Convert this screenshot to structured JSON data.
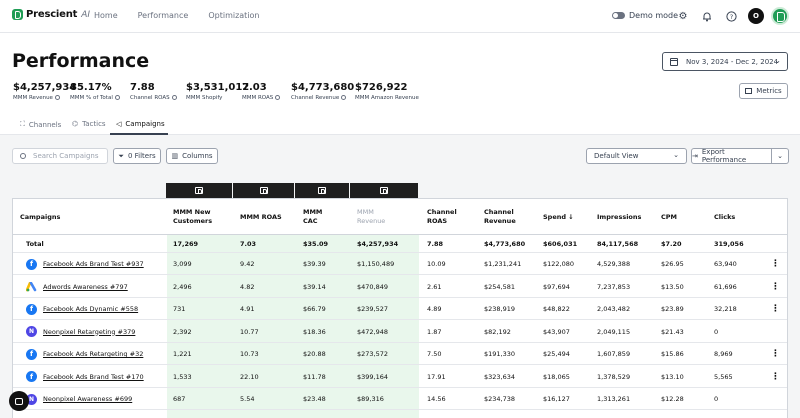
{
  "app": {
    "brand": "Prescient",
    "brand_suffix": "AI",
    "nav": [
      "Home",
      "Performance",
      "Optimization"
    ],
    "demo_mode_label": "Demo mode",
    "avatar_initial": "O"
  },
  "header": {
    "title": "Performance",
    "date_range": "Nov 3, 2024 - Dec 2, 2024",
    "metrics_button": "Metrics"
  },
  "kpis": [
    {
      "value": "$4,257,934",
      "label": "MMM Revenue"
    },
    {
      "value": "85.17%",
      "label": "MMM % of Total"
    },
    {
      "value": "7.88",
      "label": "Channel ROAS"
    },
    {
      "value": "$3,531,012",
      "label": "MMM Shopify"
    },
    {
      "value": "7.03",
      "label": "MMM ROAS"
    },
    {
      "value": "$4,773,680",
      "label": "Channel Revenue"
    },
    {
      "value": "$726,922",
      "label": "MMM Amazon Revenue"
    }
  ],
  "tabs": [
    {
      "label": "Channels",
      "icon": "channels-icon"
    },
    {
      "label": "Tactics",
      "icon": "tactics-icon"
    },
    {
      "label": "Campaigns",
      "icon": "campaigns-icon"
    }
  ],
  "toolbar": {
    "search_placeholder": "Search Campaigns",
    "filters_label": "0 Filters",
    "columns_label": "Columns",
    "view_label": "Default View",
    "export_label": "Export Performance"
  },
  "table": {
    "headers": {
      "campaigns": "Campaigns",
      "mmm_new_customers": "MMM New Customers",
      "mmm_roas": "MMM ROAS",
      "mmm_cac": "MMM CAC",
      "mmm_revenue": "MMM Revenue",
      "channel_roas": "Channel ROAS",
      "channel_revenue": "Channel Revenue",
      "spend": "Spend ↓",
      "impressions": "Impressions",
      "cpm": "CPM",
      "clicks": "Clicks"
    },
    "total": {
      "name": "Total",
      "new_customers": "17,269",
      "mmm_roas": "7.03",
      "mmm_cac": "$35.09",
      "mmm_revenue": "$4,257,934",
      "channel_roas": "7.88",
      "channel_revenue": "$4,773,680",
      "spend": "$606,031",
      "impressions": "84,117,568",
      "cpm": "$7.20",
      "clicks": "319,056"
    },
    "rows": [
      {
        "channel": "facebook",
        "name": "Facebook Ads Brand Test #937",
        "new_customers": "3,099",
        "mmm_roas": "9.42",
        "mmm_cac": "$39.39",
        "mmm_revenue": "$1,150,489",
        "channel_roas": "10.09",
        "channel_revenue": "$1,231,241",
        "spend": "$122,080",
        "impressions": "4,529,388",
        "cpm": "$26.95",
        "clicks": "63,940",
        "menu": true
      },
      {
        "channel": "adwords",
        "name": "Adwords Awareness #797",
        "new_customers": "2,496",
        "mmm_roas": "4.82",
        "mmm_cac": "$39.14",
        "mmm_revenue": "$470,849",
        "channel_roas": "2.61",
        "channel_revenue": "$254,581",
        "spend": "$97,694",
        "impressions": "7,237,853",
        "cpm": "$13.50",
        "clicks": "61,696",
        "menu": true
      },
      {
        "channel": "facebook",
        "name": "Facebook Ads Dynamic #558",
        "new_customers": "731",
        "mmm_roas": "4.91",
        "mmm_cac": "$66.79",
        "mmm_revenue": "$239,527",
        "channel_roas": "4.89",
        "channel_revenue": "$238,919",
        "spend": "$48,822",
        "impressions": "2,043,482",
        "cpm": "$23.89",
        "clicks": "32,218",
        "menu": true
      },
      {
        "channel": "neonpixel",
        "name": "Neonpixel Retargeting #379",
        "new_customers": "2,392",
        "mmm_roas": "10.77",
        "mmm_cac": "$18.36",
        "mmm_revenue": "$472,948",
        "channel_roas": "1.87",
        "channel_revenue": "$82,192",
        "spend": "$43,907",
        "impressions": "2,049,115",
        "cpm": "$21.43",
        "clicks": "0",
        "menu": false
      },
      {
        "channel": "facebook",
        "name": "Facebook Ads Retargeting #32",
        "new_customers": "1,221",
        "mmm_roas": "10.73",
        "mmm_cac": "$20.88",
        "mmm_revenue": "$273,572",
        "channel_roas": "7.50",
        "channel_revenue": "$191,330",
        "spend": "$25,494",
        "impressions": "1,607,859",
        "cpm": "$15.86",
        "clicks": "8,969",
        "menu": true
      },
      {
        "channel": "facebook",
        "name": "Facebook Ads Brand Test #170",
        "new_customers": "1,533",
        "mmm_roas": "22.10",
        "mmm_cac": "$11.78",
        "mmm_revenue": "$399,164",
        "channel_roas": "17.91",
        "channel_revenue": "$323,634",
        "spend": "$18,065",
        "impressions": "1,378,529",
        "cpm": "$13.10",
        "clicks": "5,565",
        "menu": true
      },
      {
        "channel": "neonpixel",
        "name": "Neonpixel Awareness #699",
        "new_customers": "687",
        "mmm_roas": "5.54",
        "mmm_cac": "$23.48",
        "mmm_revenue": "$89,316",
        "channel_roas": "14.56",
        "channel_revenue": "$234,738",
        "spend": "$16,127",
        "impressions": "1,313,261",
        "cpm": "$12.28",
        "clicks": "0",
        "menu": false
      }
    ]
  },
  "colors": {
    "brand": "#1f9d55",
    "mmm_column_bg": "#e9f7ec",
    "group_header_bg": "#1f1f1f",
    "facebook": "#1877f2",
    "neonpixel": "#4f46e5"
  }
}
